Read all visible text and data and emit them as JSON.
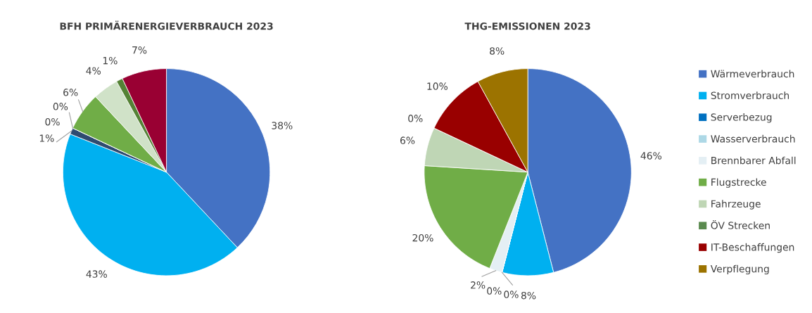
{
  "chart_data": [
    {
      "type": "pie",
      "title": "BFH PRIMÄRENERGIEVERBRAUCH 2023",
      "categories": [
        null,
        null,
        null,
        null,
        null,
        null,
        null,
        null,
        null
      ],
      "values": [
        38,
        43,
        1,
        0,
        0,
        6,
        4,
        1,
        7
      ],
      "value_labels": [
        "38%",
        "43%",
        "1%",
        "0%",
        "0%",
        "6%",
        "4%",
        "1%",
        "7%"
      ],
      "colors": [
        "#4472c4",
        "#00b0f0",
        "#2f4b70",
        "#a9d3e0",
        "#e4eff4",
        "#70ad47",
        "#d0e2c8",
        "#548235",
        "#990033"
      ],
      "legend": false
    },
    {
      "type": "pie",
      "title": "THG-EMISSIONEN 2023",
      "categories": [
        "Wärmeverbrauch",
        "Stromverbrauch",
        "Serverbezug",
        "Wasserverbrauch",
        "Brennbarer Abfall",
        "Flugstrecke",
        "Fahrzeuge",
        "ÖV Strecken",
        "IT-Beschaffungen",
        "Verpflegung"
      ],
      "values": [
        46,
        8,
        0,
        0,
        2,
        20,
        6,
        0,
        10,
        8
      ],
      "value_labels": [
        "46%",
        "8%",
        "0%",
        "0%",
        "2%",
        "20%",
        "6%",
        "0%",
        "10%",
        "8%"
      ],
      "colors": [
        "#4472c4",
        "#00b0f0",
        "#0070c0",
        "#add8e6",
        "#e4eff4",
        "#70ad47",
        "#bfd6b5",
        "#5a8a4f",
        "#990000",
        "#9c7300"
      ],
      "legend": "right"
    }
  ]
}
